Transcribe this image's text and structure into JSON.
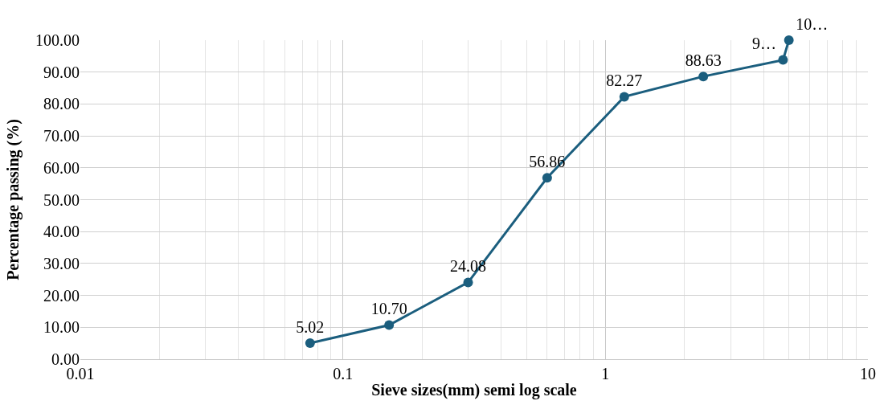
{
  "chart_data": {
    "type": "line",
    "xlabel": "Sieve sizes(mm) semi log scale",
    "ylabel": "Percentage passing (%)",
    "x": [
      0.075,
      0.15,
      0.3,
      0.6,
      1.18,
      2.36,
      4.75,
      5
    ],
    "series": [
      {
        "color": "#1b5e7e",
        "values": [
          5.02,
          10.7,
          24.08,
          56.86,
          82.27,
          88.63,
          93.8,
          100.0
        ],
        "value_labels": [
          "5.02",
          "10.70",
          "24.08",
          "56.86",
          "82.27",
          "88.63",
          "9…",
          "10…"
        ]
      }
    ],
    "log": "x",
    "xlim": [
      0.01,
      10
    ],
    "xticks": [
      0.01,
      0.1,
      1,
      10
    ],
    "ylim": [
      0,
      100
    ],
    "yticks": [
      {
        "value": 0,
        "label": "0.00"
      },
      {
        "value": 10,
        "label": "10.00"
      },
      {
        "value": 20,
        "label": "20.00"
      },
      {
        "value": 30,
        "label": "30.00"
      },
      {
        "value": 40,
        "label": "40.00"
      },
      {
        "value": 50,
        "label": "50.00"
      },
      {
        "value": 60,
        "label": "60.00"
      },
      {
        "value": 70,
        "label": "70.00"
      },
      {
        "value": 80,
        "label": "80.00"
      },
      {
        "value": 90,
        "label": "90.00"
      },
      {
        "value": 100,
        "label": "100.00"
      }
    ],
    "grid": true,
    "marker": "circle",
    "line_style": "solid",
    "legend": false
  }
}
